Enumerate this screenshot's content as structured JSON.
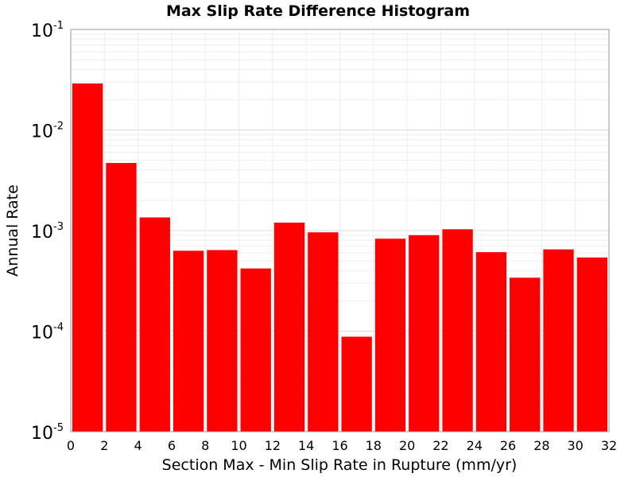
{
  "chart_data": {
    "type": "bar",
    "title": "Max Slip Rate Difference Histogram",
    "xlabel": "Section Max - Min Slip Rate in Rupture (mm/yr)",
    "ylabel": "Annual Rate",
    "xlim": [
      0,
      32
    ],
    "ylim": [
      1e-05,
      0.1
    ],
    "yscale": "log",
    "grid": true,
    "bar_color": "#ff0000",
    "x_ticks": [
      "0",
      "2",
      "4",
      "6",
      "8",
      "10",
      "12",
      "14",
      "16",
      "18",
      "20",
      "22",
      "24",
      "26",
      "28",
      "30",
      "32"
    ],
    "y_ticks": [
      {
        "base": "10",
        "exp": "-5"
      },
      {
        "base": "10",
        "exp": "-4"
      },
      {
        "base": "10",
        "exp": "-3"
      },
      {
        "base": "10",
        "exp": "-2"
      },
      {
        "base": "10",
        "exp": "-1"
      }
    ],
    "bins": [
      {
        "x0": 0,
        "x1": 2,
        "value": 0.029
      },
      {
        "x0": 2,
        "x1": 4,
        "value": 0.0047
      },
      {
        "x0": 4,
        "x1": 6,
        "value": 0.00135
      },
      {
        "x0": 6,
        "x1": 8,
        "value": 0.00063
      },
      {
        "x0": 8,
        "x1": 10,
        "value": 0.00064
      },
      {
        "x0": 10,
        "x1": 12,
        "value": 0.00042
      },
      {
        "x0": 12,
        "x1": 14,
        "value": 0.0012
      },
      {
        "x0": 14,
        "x1": 16,
        "value": 0.00096
      },
      {
        "x0": 16,
        "x1": 18,
        "value": 8.8e-05
      },
      {
        "x0": 18,
        "x1": 20,
        "value": 0.00083
      },
      {
        "x0": 20,
        "x1": 22,
        "value": 0.0009
      },
      {
        "x0": 22,
        "x1": 24,
        "value": 0.00103
      },
      {
        "x0": 24,
        "x1": 26,
        "value": 0.00061
      },
      {
        "x0": 26,
        "x1": 28,
        "value": 0.00034
      },
      {
        "x0": 28,
        "x1": 30,
        "value": 0.00065
      },
      {
        "x0": 30,
        "x1": 32,
        "value": 0.00054
      }
    ]
  }
}
